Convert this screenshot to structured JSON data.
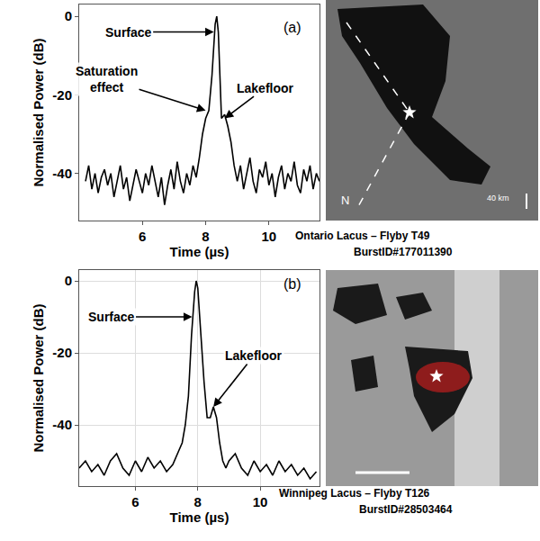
{
  "chart_data": [
    {
      "type": "line",
      "panel": "(a)",
      "x_label": "Time (µs)",
      "y_label": "Normalised Power (dB)",
      "x": [
        4.2,
        4.3,
        4.4,
        4.5,
        4.6,
        4.7,
        4.8,
        4.9,
        5.0,
        5.1,
        5.2,
        5.3,
        5.4,
        5.5,
        5.6,
        5.7,
        5.8,
        5.9,
        6.0,
        6.1,
        6.2,
        6.3,
        6.4,
        6.5,
        6.6,
        6.7,
        6.8,
        6.9,
        7.0,
        7.1,
        7.2,
        7.3,
        7.4,
        7.5,
        7.6,
        7.7,
        7.8,
        7.9,
        8.0,
        8.1,
        8.2,
        8.3,
        8.35,
        8.4,
        8.45,
        8.5,
        8.6,
        8.7,
        8.8,
        8.9,
        9.0,
        9.1,
        9.2,
        9.3,
        9.4,
        9.5,
        9.6,
        9.7,
        9.8,
        9.9,
        10.0,
        10.1,
        10.2,
        10.3,
        10.4,
        10.5,
        10.6,
        10.7,
        10.8,
        10.9,
        11.0,
        11.1,
        11.2,
        11.3,
        11.4,
        11.5,
        11.6
      ],
      "values": [
        -42,
        -38,
        -44,
        -40,
        -45,
        -41,
        -39,
        -43,
        -40,
        -46,
        -42,
        -38,
        -44,
        -41,
        -47,
        -43,
        -39,
        -42,
        -45,
        -40,
        -43,
        -38,
        -42,
        -46,
        -41,
        -48,
        -43,
        -39,
        -44,
        -37,
        -42,
        -45,
        -40,
        -43,
        -38,
        -41,
        -36,
        -30,
        -26,
        -24,
        -15,
        -2,
        0,
        -4,
        -15,
        -26,
        -25,
        -28,
        -32,
        -38,
        -42,
        -38,
        -44,
        -40,
        -36,
        -42,
        -45,
        -39,
        -41,
        -37,
        -43,
        -40,
        -46,
        -41,
        -38,
        -44,
        -40,
        -42,
        -37,
        -43,
        -45,
        -39,
        -42,
        -38,
        -44,
        -40,
        -42
      ],
      "color": "#000000",
      "xlim": [
        4.0,
        11.6
      ],
      "ylim": [
        -52,
        3
      ],
      "xticks": [
        6,
        8,
        10
      ],
      "yticks": [
        -40,
        -20,
        0
      ],
      "grid": false,
      "annotations": [
        {
          "text": "Surface",
          "x": 8.26,
          "y": -4
        },
        {
          "text": "Saturation effect",
          "x": 8.0,
          "y": -24
        },
        {
          "text": "Lakefloor",
          "x": 8.6,
          "y": -26
        }
      ],
      "image_caption": [
        "Ontario Lacus – Flyby T49",
        "BurstID#177011390"
      ],
      "image_labels": [
        "N",
        "40 km"
      ]
    },
    {
      "type": "line",
      "panel": "(b)",
      "x_label": "Time (µs)",
      "y_label": "Normalised Power (dB)",
      "x": [
        4.2,
        4.4,
        4.6,
        4.8,
        5.0,
        5.2,
        5.4,
        5.6,
        5.8,
        6.0,
        6.2,
        6.4,
        6.6,
        6.8,
        7.0,
        7.2,
        7.4,
        7.5,
        7.6,
        7.7,
        7.8,
        7.9,
        7.95,
        8.0,
        8.1,
        8.2,
        8.3,
        8.4,
        8.5,
        8.6,
        8.7,
        8.8,
        8.9,
        9.0,
        9.2,
        9.4,
        9.6,
        9.8,
        10.0,
        10.2,
        10.4,
        10.6,
        10.8,
        11.0,
        11.2,
        11.4,
        11.6,
        11.8
      ],
      "values": [
        -52,
        -50,
        -53,
        -51,
        -54,
        -50,
        -48,
        -52,
        -54,
        -50,
        -53,
        -49,
        -52,
        -50,
        -53,
        -51,
        -47,
        -45,
        -40,
        -32,
        -15,
        -3,
        0,
        -2,
        -15,
        -28,
        -38,
        -38,
        -35,
        -38,
        -45,
        -50,
        -52,
        -50,
        -48,
        -52,
        -54,
        -50,
        -53,
        -51,
        -54,
        -50,
        -53,
        -51,
        -54,
        -52,
        -55,
        -53
      ],
      "color": "#000000",
      "xlim": [
        4.2,
        11.9
      ],
      "ylim": [
        -57,
        3
      ],
      "xticks": [
        6,
        8,
        10
      ],
      "yticks": [
        -40,
        -20,
        0
      ],
      "grid": true,
      "annotations": [
        {
          "text": "Surface",
          "x": 7.82,
          "y": -10
        },
        {
          "text": "Lakefloor",
          "x": 8.5,
          "y": -35
        }
      ],
      "image_caption": [
        "Winnipeg Lacus – Flyby T126",
        "BurstID#28503464"
      ]
    }
  ]
}
